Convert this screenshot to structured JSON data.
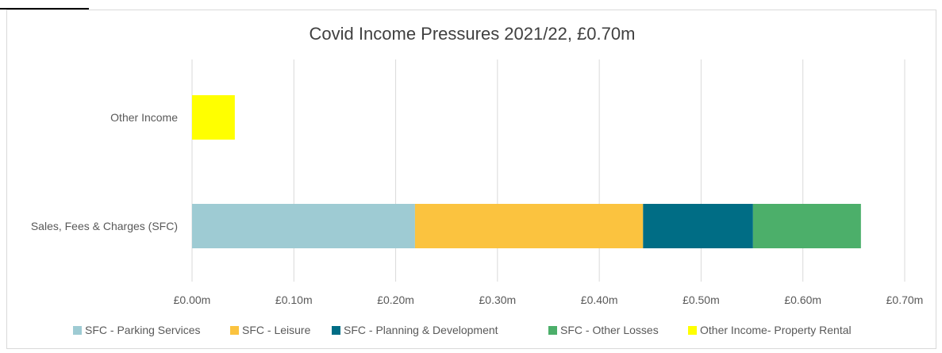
{
  "chart_data": {
    "type": "bar",
    "orientation": "horizontal",
    "stacked": true,
    "title": "Covid Income Pressures 2021/22, £0.70m",
    "categories": [
      "Other Income",
      "Sales, Fees & Charges (SFC)"
    ],
    "x_ticks": [
      "£0.00m",
      "£0.10m",
      "£0.20m",
      "£0.30m",
      "£0.40m",
      "£0.50m",
      "£0.60m",
      "£0.70m"
    ],
    "xlim": [
      0,
      0.7
    ],
    "grid": true,
    "legend_position": "bottom",
    "series": [
      {
        "name": "SFC - Parking Services",
        "color": "#9ecbd3",
        "values": [
          0,
          0.219
        ]
      },
      {
        "name": "SFC - Leisure",
        "color": "#fbc33f",
        "values": [
          0,
          0.224
        ]
      },
      {
        "name": "SFC - Planning & Development",
        "color": "#006d85",
        "values": [
          0,
          0.108
        ]
      },
      {
        "name": "SFC - Other Losses",
        "color": "#4caf6a",
        "values": [
          0,
          0.106
        ]
      },
      {
        "name": "Other Income- Property Rental",
        "color": "#ffff00",
        "values": [
          0.042,
          0
        ]
      }
    ]
  }
}
